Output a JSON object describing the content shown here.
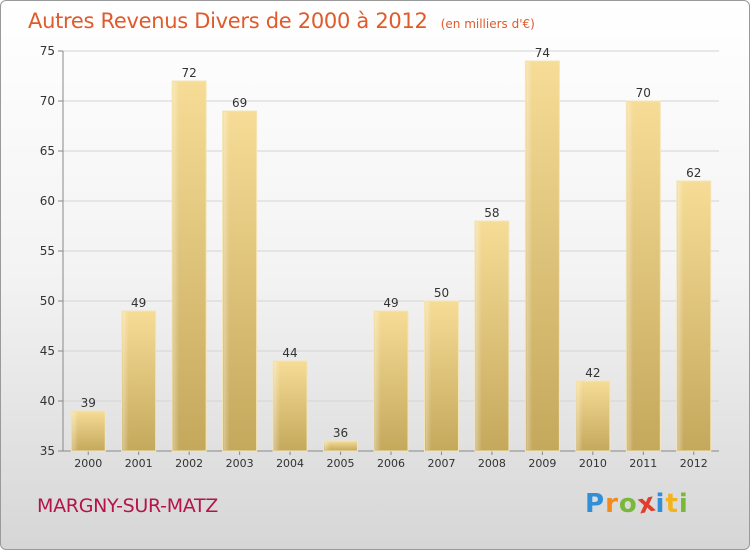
{
  "title": "Autres Revenus Divers de 2000 à 2012",
  "unit": "(en milliers d'€)",
  "location": "MARGNY-SUR-MATZ",
  "logo": {
    "letters": [
      "P",
      "r",
      "o",
      "x",
      "i",
      "t",
      "i"
    ],
    "colors": [
      "#2f8fd8",
      "#f28a1e",
      "#7ab83a",
      "#e23c2c",
      "#2f8fd8",
      "#f2b41e",
      "#7ab83a"
    ]
  },
  "chart_data": {
    "type": "bar",
    "title": "Autres Revenus Divers de 2000 à 2012",
    "categories": [
      "2000",
      "2001",
      "2002",
      "2003",
      "2004",
      "2005",
      "2006",
      "2007",
      "2008",
      "2009",
      "2010",
      "2011",
      "2012"
    ],
    "values": [
      39,
      49,
      72,
      69,
      44,
      36,
      49,
      50,
      58,
      74,
      42,
      70,
      62
    ],
    "data_labels": [
      "39",
      "49",
      "72",
      "69",
      "44",
      "36",
      "49",
      "50",
      "58",
      "74",
      "42",
      "70",
      "62"
    ],
    "ylim": [
      35,
      75
    ],
    "yticks": [
      35,
      40,
      45,
      50,
      55,
      60,
      65,
      70,
      75
    ],
    "ytick_labels": [
      "35",
      "40",
      "45",
      "50",
      "55",
      "60",
      "65",
      "70",
      "75"
    ],
    "grid": true,
    "bar_color": "#e8c878"
  }
}
